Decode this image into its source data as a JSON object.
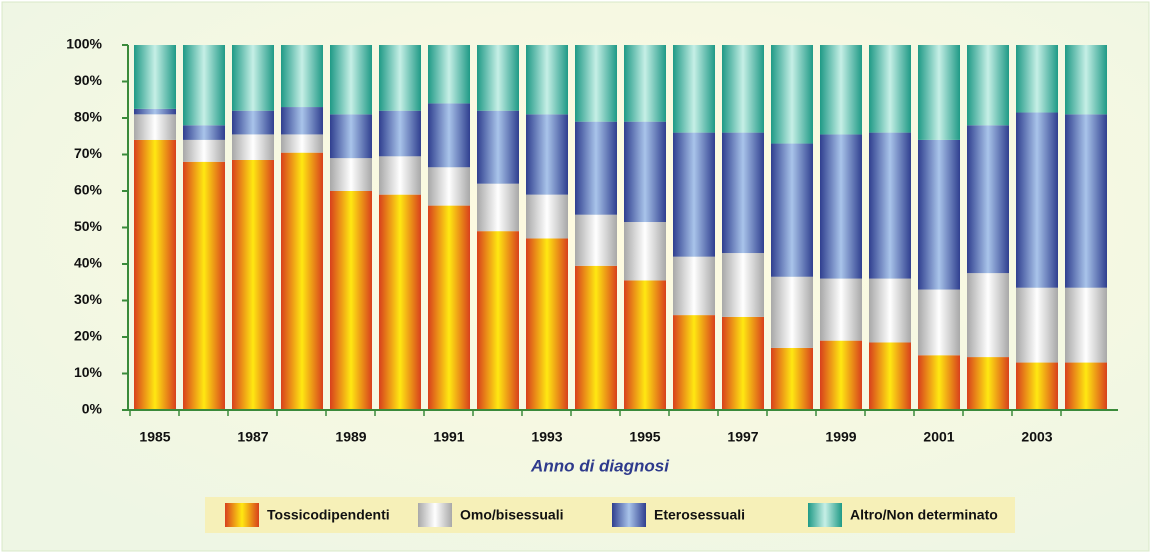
{
  "chart_data": {
    "type": "stacked_bar",
    "x_label": "Anno di diagnosi",
    "categories": [
      "1985",
      null,
      "1987",
      null,
      "1989",
      null,
      "1991",
      null,
      "1993",
      null,
      "1995",
      null,
      "1997",
      null,
      "1999",
      null,
      "2001",
      null,
      "2003",
      null
    ],
    "series": [
      {
        "name": "Tossicodipendenti",
        "color": "#d8401c",
        "highlight": "#ffe812",
        "values": [
          74,
          68,
          68.5,
          70.5,
          60,
          59,
          56,
          49,
          47,
          39.5,
          35.5,
          26,
          25.5,
          17,
          19,
          18.5,
          15,
          14.5,
          13,
          13
        ]
      },
      {
        "name": "Omo/bisessuali",
        "color": "#a8a8a8",
        "highlight": "#ffffff",
        "values": [
          7,
          6,
          7,
          5,
          9,
          10.5,
          10.5,
          13,
          12,
          14,
          16,
          16,
          17.5,
          19.5,
          17,
          17.5,
          18,
          23,
          20.5,
          20.5
        ]
      },
      {
        "name": "Eterosessuali",
        "color": "#2f3f8f",
        "highlight": "#a9c4ea",
        "values": [
          1.5,
          4,
          6.5,
          7.5,
          12,
          12.5,
          17.5,
          20,
          22,
          25.5,
          27.5,
          34,
          33,
          36.5,
          39.5,
          40,
          41,
          40.5,
          48,
          47.5
        ]
      },
      {
        "name": "Altro/Non determinato",
        "color": "#1f9a86",
        "highlight": "#c6efe6",
        "values": [
          17.5,
          22,
          18,
          17,
          19,
          18,
          16,
          18,
          19,
          21,
          21,
          24,
          24,
          27,
          24.5,
          24,
          26,
          22,
          18.5,
          19
        ]
      }
    ],
    "ylim": [
      0,
      100
    ],
    "yticks": [
      {
        "value": 0,
        "label": "0%"
      },
      {
        "value": 10,
        "label": "10%"
      },
      {
        "value": 20,
        "label": "20%"
      },
      {
        "value": 30,
        "label": "30%"
      },
      {
        "value": 40,
        "label": "40%"
      },
      {
        "value": 50,
        "label": "50%"
      },
      {
        "value": 60,
        "label": "60%"
      },
      {
        "value": 70,
        "label": "70%"
      },
      {
        "value": 80,
        "label": "80%"
      },
      {
        "value": 90,
        "label": "90%"
      },
      {
        "value": 100,
        "label": "100%"
      }
    ]
  }
}
